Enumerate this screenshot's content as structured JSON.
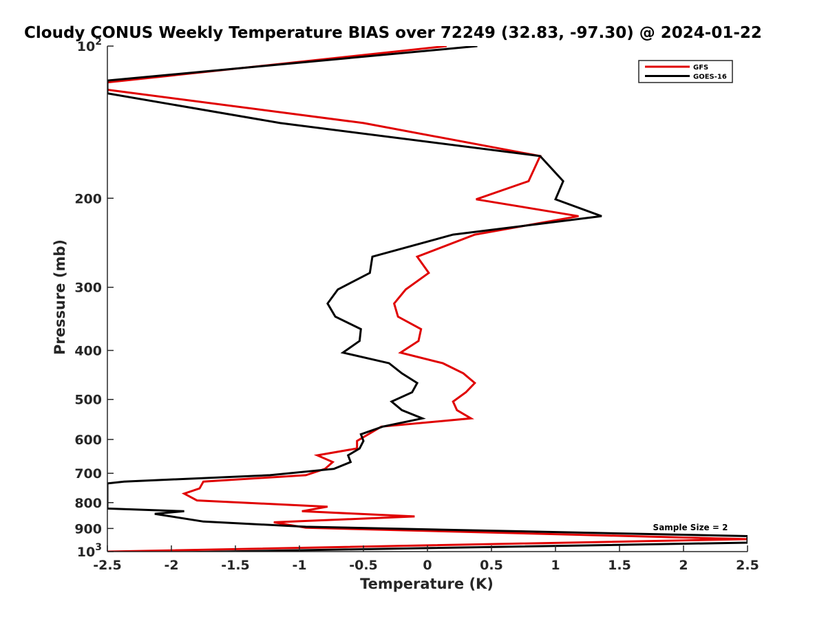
{
  "chart_data": {
    "type": "line",
    "title": "Cloudy CONUS Weekly Temperature BIAS over 72249 (32.83, -97.30) @ 2024-01-22",
    "xlabel": "Temperature (K)",
    "ylabel": "Pressure (mb)",
    "xlim": [
      -2.5,
      2.5
    ],
    "ylim": [
      1000,
      100
    ],
    "yscale": "log",
    "y_reversed": true,
    "grid": false,
    "legend_position": "top-right",
    "x_ticks": [
      -2.5,
      -2,
      -1.5,
      -1,
      -0.5,
      0,
      0.5,
      1,
      1.5,
      2,
      2.5
    ],
    "x_tick_labels": [
      "-2.5",
      "-2",
      "-1.5",
      "-1",
      "-0.5",
      "0",
      "0.5",
      "1",
      "1.5",
      "2",
      "2.5"
    ],
    "y_ticks": [
      100,
      200,
      300,
      400,
      500,
      600,
      700,
      800,
      900,
      1000
    ],
    "y_tick_labels": [
      {
        "base": "10",
        "exp": "2"
      },
      {
        "base": "200",
        "exp": ""
      },
      {
        "base": "300",
        "exp": ""
      },
      {
        "base": "400",
        "exp": ""
      },
      {
        "base": "500",
        "exp": ""
      },
      {
        "base": "600",
        "exp": ""
      },
      {
        "base": "700",
        "exp": ""
      },
      {
        "base": "800",
        "exp": ""
      },
      {
        "base": "900",
        "exp": ""
      },
      {
        "base": "10",
        "exp": "3"
      }
    ],
    "annotation": "Sample Size = 2",
    "series": [
      {
        "name": "GFS",
        "color": "#e00000",
        "points": [
          [
            0.15,
            100
          ],
          [
            -2.5,
            118
          ],
          [
            -2.5,
            122
          ],
          [
            -0.5,
            142
          ],
          [
            0.88,
            165
          ],
          [
            0.79,
            185
          ],
          [
            0.38,
            201
          ],
          [
            1.18,
            217
          ],
          [
            0.37,
            236
          ],
          [
            -0.08,
            261
          ],
          [
            0.01,
            281
          ],
          [
            -0.17,
            303
          ],
          [
            -0.26,
            323
          ],
          [
            -0.23,
            343
          ],
          [
            -0.05,
            363
          ],
          [
            -0.07,
            383
          ],
          [
            -0.21,
            404
          ],
          [
            0.12,
            424
          ],
          [
            0.28,
            444
          ],
          [
            0.37,
            464
          ],
          [
            0.3,
            484
          ],
          [
            0.2,
            505
          ],
          [
            0.23,
            525
          ],
          [
            0.34,
            545
          ],
          [
            -0.36,
            566
          ],
          [
            -0.55,
            604
          ],
          [
            -0.55,
            625
          ],
          [
            -0.86,
            645
          ],
          [
            -0.74,
            665
          ],
          [
            -0.8,
            686
          ],
          [
            -0.95,
            706
          ],
          [
            -1.75,
            727
          ],
          [
            -1.78,
            750
          ],
          [
            -1.9,
            768
          ],
          [
            -1.8,
            792
          ],
          [
            -0.78,
            815
          ],
          [
            -0.98,
            832
          ],
          [
            -0.1,
            852
          ],
          [
            -1.2,
            875
          ],
          [
            -0.95,
            897
          ],
          [
            2.5,
            945
          ],
          [
            -2.5,
            1000
          ]
        ]
      },
      {
        "name": "GOES-16",
        "color": "#000000",
        "points": [
          [
            0.39,
            100
          ],
          [
            -2.5,
            117
          ],
          [
            -2.5,
            124
          ],
          [
            -1.15,
            142
          ],
          [
            0.88,
            165
          ],
          [
            1.06,
            185
          ],
          [
            1.0,
            201
          ],
          [
            1.36,
            217
          ],
          [
            0.2,
            236
          ],
          [
            -0.43,
            261
          ],
          [
            -0.45,
            281
          ],
          [
            -0.7,
            303
          ],
          [
            -0.78,
            323
          ],
          [
            -0.72,
            343
          ],
          [
            -0.52,
            363
          ],
          [
            -0.53,
            383
          ],
          [
            -0.66,
            404
          ],
          [
            -0.3,
            424
          ],
          [
            -0.2,
            444
          ],
          [
            -0.08,
            464
          ],
          [
            -0.12,
            484
          ],
          [
            -0.28,
            505
          ],
          [
            -0.2,
            525
          ],
          [
            -0.04,
            545
          ],
          [
            -0.35,
            566
          ],
          [
            -0.52,
            586
          ],
          [
            -0.5,
            604
          ],
          [
            -0.53,
            625
          ],
          [
            -0.62,
            645
          ],
          [
            -0.6,
            665
          ],
          [
            -0.73,
            686
          ],
          [
            -1.23,
            706
          ],
          [
            -2.37,
            727
          ],
          [
            -2.5,
            733
          ],
          [
            -2.5,
            822
          ],
          [
            -1.9,
            832
          ],
          [
            -2.13,
            842
          ],
          [
            -1.75,
            872
          ],
          [
            -0.95,
            893
          ],
          [
            2.5,
            932
          ],
          [
            2.5,
            960
          ],
          [
            -2.12,
            1005
          ]
        ]
      }
    ]
  }
}
